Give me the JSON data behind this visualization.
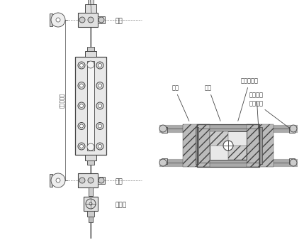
{
  "bg_color": "#ffffff",
  "line_color": "#444444",
  "text_color": "#333333",
  "labels_left": {
    "qi_valve": "汽阀",
    "shui_valve": "水阀",
    "pai_valve": "排污阀",
    "center_dist": "测量中心距"
  },
  "labels_right": {
    "gai_ban": "盖板",
    "zhu_ti": "主体",
    "glass": "液位计玻璃",
    "seal": "密封压坠",
    "bolt": "双头螺杆"
  },
  "figsize": [
    4.29,
    3.45
  ],
  "dpi": 100
}
